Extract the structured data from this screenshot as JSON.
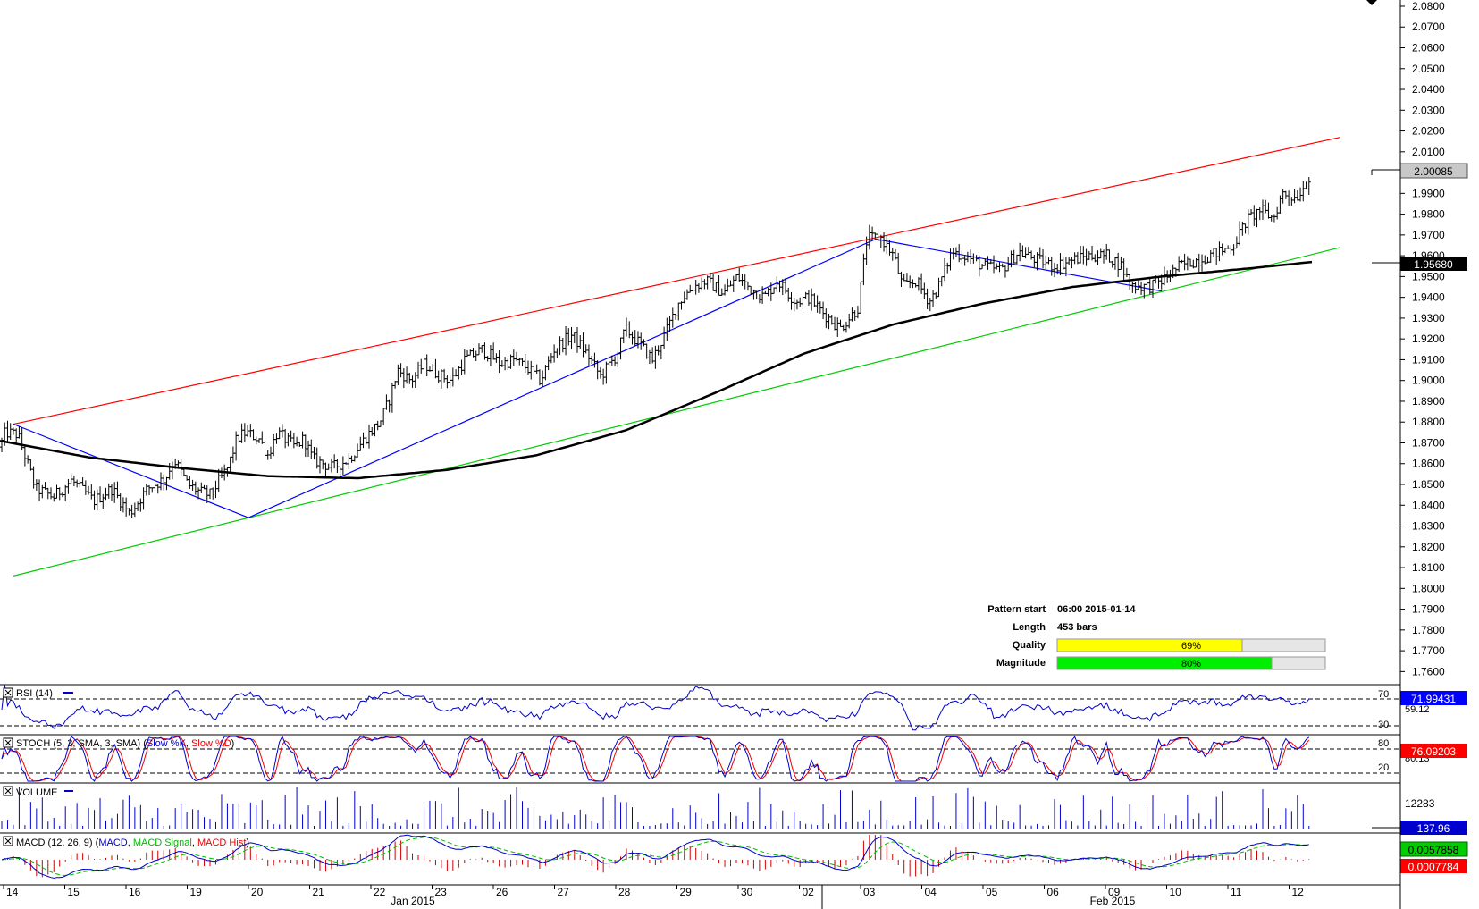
{
  "chart_data": {
    "type": "candlestick",
    "price_axis": {
      "ticks": [
        "2.0800",
        "2.0700",
        "2.0600",
        "2.0500",
        "2.0400",
        "2.0300",
        "2.0200",
        "2.0100",
        "1.9900",
        "1.9800",
        "1.9700",
        "1.9600",
        "1.9500",
        "1.9400",
        "1.9300",
        "1.9200",
        "1.9100",
        "1.9000",
        "1.8900",
        "1.8800",
        "1.8700",
        "1.8600",
        "1.8500",
        "1.8400",
        "1.8300",
        "1.8200",
        "1.8100",
        "1.8000",
        "1.7900",
        "1.7800",
        "1.7700",
        "1.7600"
      ],
      "range": [
        1.755,
        2.083
      ],
      "current_price_label": "2.00085",
      "ma_value_label": "1.95680"
    },
    "time_axis": {
      "day_labels": [
        "14",
        "15",
        "16",
        "19",
        "20",
        "21",
        "22",
        "23",
        "26",
        "27",
        "28",
        "29",
        "30",
        "02",
        "03",
        "04",
        "05",
        "06",
        "09",
        "10",
        "11",
        "12"
      ],
      "month_labels": [
        "Jan 2015",
        "Feb 2015"
      ]
    },
    "price_series": {
      "start": 1.868,
      "anchors": [
        [
          0,
          1.868
        ],
        [
          6,
          1.875
        ],
        [
          20,
          1.874
        ],
        [
          40,
          1.848
        ],
        [
          60,
          1.844
        ],
        [
          80,
          1.852
        ],
        [
          105,
          1.842
        ],
        [
          125,
          1.848
        ],
        [
          145,
          1.836
        ],
        [
          165,
          1.848
        ],
        [
          185,
          1.853
        ],
        [
          195,
          1.862
        ],
        [
          210,
          1.85
        ],
        [
          225,
          1.846
        ],
        [
          235,
          1.845
        ],
        [
          255,
          1.858
        ],
        [
          265,
          1.872
        ],
        [
          275,
          1.875
        ],
        [
          290,
          1.872
        ],
        [
          300,
          1.864
        ],
        [
          310,
          1.875
        ],
        [
          330,
          1.868
        ],
        [
          340,
          1.872
        ],
        [
          350,
          1.862
        ],
        [
          362,
          1.86
        ],
        [
          372,
          1.858
        ],
        [
          390,
          1.862
        ],
        [
          410,
          1.873
        ],
        [
          425,
          1.88
        ],
        [
          435,
          1.89
        ],
        [
          445,
          1.905
        ],
        [
          460,
          1.9
        ],
        [
          475,
          1.908
        ],
        [
          490,
          1.903
        ],
        [
          505,
          1.9
        ],
        [
          520,
          1.91
        ],
        [
          540,
          1.915
        ],
        [
          560,
          1.908
        ],
        [
          575,
          1.91
        ],
        [
          590,
          1.906
        ],
        [
          605,
          1.9
        ],
        [
          620,
          1.915
        ],
        [
          640,
          1.922
        ],
        [
          658,
          1.912
        ],
        [
          672,
          1.902
        ],
        [
          690,
          1.912
        ],
        [
          700,
          1.925
        ],
        [
          715,
          1.918
        ],
        [
          730,
          1.91
        ],
        [
          745,
          1.923
        ],
        [
          760,
          1.938
        ],
        [
          775,
          1.945
        ],
        [
          790,
          1.948
        ],
        [
          810,
          1.942
        ],
        [
          825,
          1.95
        ],
        [
          840,
          1.944
        ],
        [
          855,
          1.94
        ],
        [
          870,
          1.948
        ],
        [
          890,
          1.938
        ],
        [
          905,
          1.94
        ],
        [
          920,
          1.933
        ],
        [
          940,
          1.925
        ],
        [
          960,
          1.935
        ],
        [
          970,
          1.968
        ],
        [
          985,
          1.969
        ],
        [
          1000,
          1.96
        ],
        [
          1010,
          1.945
        ],
        [
          1025,
          1.948
        ],
        [
          1040,
          1.938
        ],
        [
          1050,
          1.945
        ],
        [
          1065,
          1.962
        ],
        [
          1080,
          1.96
        ],
        [
          1100,
          1.955
        ],
        [
          1120,
          1.953
        ],
        [
          1140,
          1.962
        ],
        [
          1160,
          1.958
        ],
        [
          1180,
          1.955
        ],
        [
          1200,
          1.958
        ],
        [
          1220,
          1.96
        ],
        [
          1240,
          1.96
        ],
        [
          1255,
          1.955
        ],
        [
          1265,
          1.946
        ],
        [
          1285,
          1.945
        ],
        [
          1300,
          1.948
        ],
        [
          1320,
          1.955
        ],
        [
          1340,
          1.958
        ],
        [
          1365,
          1.962
        ],
        [
          1380,
          1.965
        ],
        [
          1395,
          1.977
        ],
        [
          1410,
          1.982
        ],
        [
          1425,
          1.978
        ],
        [
          1435,
          1.99
        ],
        [
          1450,
          1.988
        ],
        [
          1462,
          1.995
        ],
        [
          1468,
          2.001
        ]
      ]
    },
    "moving_average": {
      "name": "",
      "anchors": [
        [
          0,
          1.871
        ],
        [
          100,
          1.863
        ],
        [
          200,
          1.858
        ],
        [
          300,
          1.854
        ],
        [
          400,
          1.853
        ],
        [
          500,
          1.857
        ],
        [
          600,
          1.864
        ],
        [
          700,
          1.876
        ],
        [
          800,
          1.894
        ],
        [
          900,
          1.913
        ],
        [
          1000,
          1.927
        ],
        [
          1100,
          1.937
        ],
        [
          1200,
          1.945
        ],
        [
          1300,
          1.95
        ],
        [
          1400,
          1.954
        ],
        [
          1468,
          1.957
        ]
      ]
    },
    "trendlines": [
      {
        "name": "resistance",
        "color": "#ff0000",
        "from": [
          15,
          1.879
        ],
        "to": [
          1500,
          2.017
        ]
      },
      {
        "name": "support",
        "color": "#00cc00",
        "from": [
          15,
          1.806
        ],
        "to": [
          1500,
          1.964
        ]
      },
      {
        "name": "pattern",
        "color": "#0000ff",
        "points": [
          [
            15,
            1.879
          ],
          [
            278,
            1.834
          ],
          [
            980,
            1.968
          ],
          [
            1300,
            1.943
          ]
        ]
      }
    ],
    "pattern_info": {
      "pattern_start_label": "Pattern start",
      "pattern_start_value": "06:00 2015-01-14",
      "length_label": "Length",
      "length_value": "453 bars",
      "quality_label": "Quality",
      "quality_text": "69%",
      "quality": 0.69,
      "magnitude_label": "Magnitude",
      "magnitude_text": "80%",
      "magnitude": 0.8
    },
    "indicators": {
      "rsi": {
        "title": "RSI (14)",
        "level_high": "70",
        "level_low": "30",
        "value_label": "71.99431",
        "secondary_label": "59.12"
      },
      "stoch": {
        "title_prefix": "STOCH (5, 3, SMA, 3, SMA) (",
        "k_label": "Slow %K",
        "d_label": "Slow %D",
        "title_suffix": ")",
        "level_high": "80",
        "level_low": "20",
        "value_label": "76.09203",
        "secondary_label": "80.13"
      },
      "volume": {
        "title": "VOLUME",
        "max_label": "12283",
        "value_label": "137.96"
      },
      "macd": {
        "title_prefix": "MACD (12, 26, 9) (",
        "macd_label": "MACD",
        "signal_label": "MACD Signal",
        "hist_label": "MACD Hist",
        "title_suffix": ")",
        "macd_value": "0.0057858",
        "hist_value": "0.0007784"
      }
    },
    "colors": {
      "resistance": "#ff0000",
      "support": "#00cc00",
      "pattern": "#0000ff",
      "moving_average": "#000000",
      "quality_bar": "#ffff00",
      "magnitude_bar": "#00ee00",
      "rsi_badge": "#0000ff",
      "stoch_badge": "#ff0000",
      "macd_badge": "#00cc00",
      "hist_badge": "#ff0000"
    }
  }
}
